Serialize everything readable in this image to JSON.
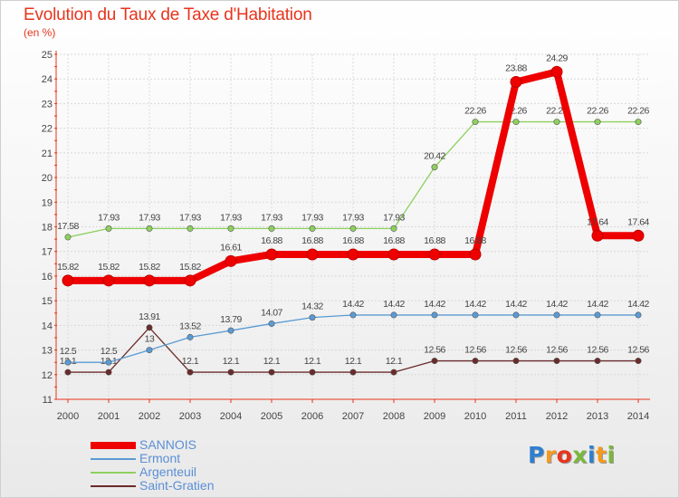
{
  "chart_data": {
    "type": "line",
    "title": "Evolution du Taux de Taxe d'Habitation",
    "subtitle": "(en %)",
    "x": [
      "2000",
      "2001",
      "2002",
      "2003",
      "2004",
      "2005",
      "2006",
      "2007",
      "2008",
      "2009",
      "2010",
      "2011",
      "2012",
      "2013",
      "2014"
    ],
    "ylim": [
      11,
      25
    ],
    "yticks": [
      11,
      12,
      13,
      14,
      15,
      16,
      17,
      18,
      19,
      20,
      21,
      22,
      23,
      24,
      25
    ],
    "grid": true,
    "legend_position": "bottom-left",
    "series": [
      {
        "name": "Saint-Gratien",
        "color": "#6b2b2b",
        "values": [
          12.1,
          12.1,
          13.91,
          12.1,
          12.1,
          12.1,
          12.1,
          12.1,
          12.1,
          12.56,
          12.56,
          12.56,
          12.56,
          12.56,
          12.56
        ],
        "labels": [
          "12.1",
          "12.1",
          "13.91",
          "12.1",
          "12.1",
          "12.1",
          "12.1",
          "12.1",
          "12.1",
          "12.56",
          "12.56",
          "12.56",
          "12.56",
          "12.56",
          "12.56"
        ]
      },
      {
        "name": "Ermont",
        "color": "#5a9bd4",
        "values": [
          12.5,
          12.5,
          13,
          13.52,
          13.79,
          14.07,
          14.32,
          14.42,
          14.42,
          14.42,
          14.42,
          14.42,
          14.42,
          14.42,
          14.42
        ],
        "labels": [
          "12.5",
          "12.5",
          "13",
          "13.52",
          "13.79",
          "14.07",
          "14.32",
          "14.42",
          "14.42",
          "14.42",
          "14.42",
          "14.42",
          "14.42",
          "14.42",
          "14.42"
        ]
      },
      {
        "name": "Argenteuil",
        "color": "#8ed05e",
        "values": [
          17.58,
          17.93,
          17.93,
          17.93,
          17.93,
          17.93,
          17.93,
          17.93,
          17.93,
          20.42,
          22.26,
          22.26,
          22.26,
          22.26,
          22.26
        ],
        "labels": [
          "17.58",
          "17.93",
          "17.93",
          "17.93",
          "17.93",
          "17.93",
          "17.93",
          "17.93",
          "17.93",
          "20.42",
          "22.26",
          "22.26",
          "22.26",
          "22.26",
          "22.26"
        ]
      },
      {
        "name": "SANNOIS",
        "color": "#ee0000",
        "values": [
          15.82,
          15.82,
          15.82,
          15.82,
          16.61,
          16.88,
          16.88,
          16.88,
          16.88,
          16.88,
          16.88,
          23.88,
          24.29,
          17.64,
          17.64
        ],
        "labels": [
          "15.82",
          "15.82",
          "15.82",
          "15.82",
          "16.61",
          "16.88",
          "16.88",
          "16.88",
          "16.88",
          "16.88",
          "16.88",
          "23.88",
          "24.29",
          "17.64",
          "17.64"
        ]
      }
    ],
    "legend_order": [
      3,
      1,
      2,
      0
    ]
  },
  "logo": {
    "letters": [
      "P",
      "r",
      "o",
      "x",
      "i",
      "t",
      "i"
    ],
    "colors": [
      "#2f7fd0",
      "#f29a1f",
      "#e8341c",
      "#7ab83a",
      "#2f7fd0",
      "#f29a1f",
      "#7ab83a"
    ]
  }
}
